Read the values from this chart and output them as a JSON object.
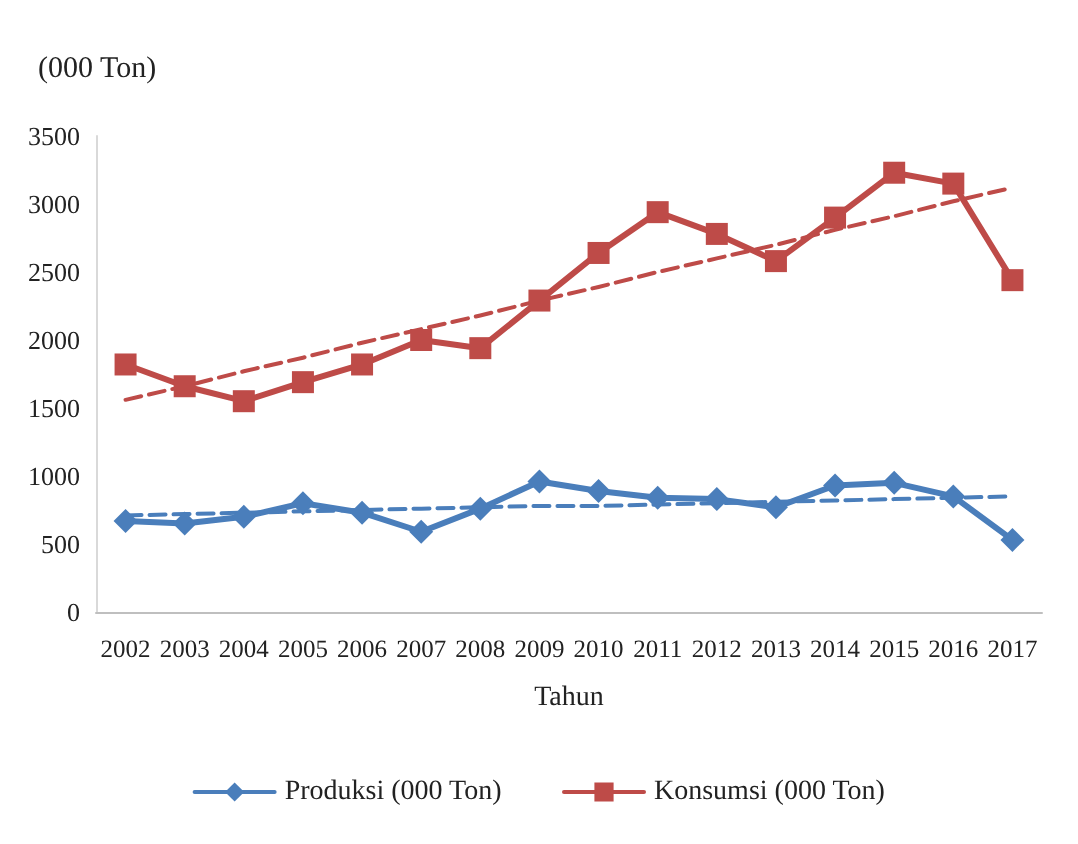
{
  "chart_data": {
    "type": "line",
    "ylabel": "(000 Ton)",
    "xlabel": "Tahun",
    "categories": [
      "2002",
      "2003",
      "2004",
      "2005",
      "2006",
      "2007",
      "2008",
      "2009",
      "2010",
      "2011",
      "2012",
      "2013",
      "2014",
      "2015",
      "2016",
      "2017"
    ],
    "series": [
      {
        "name": "Produksi (000 Ton)",
        "color": "#4a7ebb",
        "marker": "diamond",
        "values": [
          670,
          650,
          700,
          800,
          730,
          590,
          760,
          960,
          890,
          840,
          830,
          770,
          930,
          950,
          850,
          530
        ]
      },
      {
        "name": "Konsumsi (000 Ton)",
        "color": "#be4b48",
        "marker": "square",
        "values": [
          1820,
          1660,
          1550,
          1690,
          1820,
          2000,
          1940,
          2290,
          2640,
          2940,
          2780,
          2580,
          2900,
          3230,
          3150,
          2440
        ]
      },
      {
        "color": "#4a7ebb",
        "marker": "none",
        "line_style": "dashed",
        "values": [
          710,
          720,
          730,
          740,
          750,
          760,
          770,
          780,
          780,
          790,
          800,
          810,
          820,
          830,
          840,
          850
        ]
      },
      {
        "color": "#be4b48",
        "marker": "none",
        "line_style": "dashed",
        "values": [
          1560,
          1660,
          1770,
          1870,
          1980,
          2080,
          2180,
          2290,
          2390,
          2500,
          2600,
          2700,
          2810,
          2910,
          3020,
          3120
        ]
      }
    ],
    "ylim": [
      0,
      3500
    ],
    "yticks": [
      0,
      500,
      1000,
      1500,
      2000,
      2500,
      3000,
      3500
    ],
    "grid": false,
    "legend": "bottom"
  }
}
